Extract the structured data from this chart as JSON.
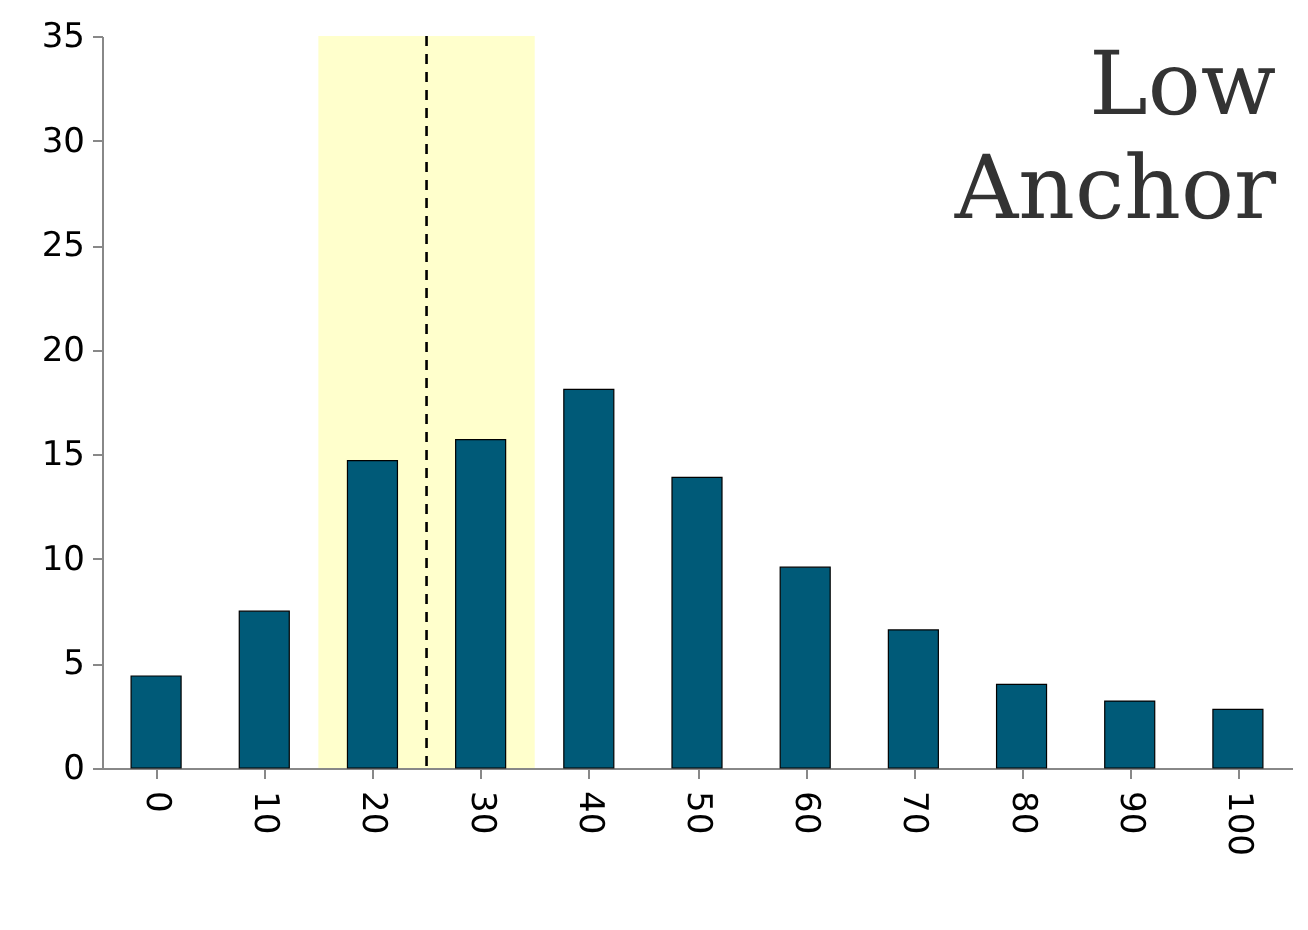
{
  "chart_data": {
    "type": "bar",
    "title": "Low Anchor",
    "x": [
      0,
      10,
      20,
      30,
      40,
      50,
      60,
      70,
      80,
      90,
      100
    ],
    "values": [
      4.4,
      7.5,
      14.7,
      15.7,
      18.1,
      13.9,
      9.6,
      6.6,
      4.0,
      3.2,
      2.8
    ],
    "color": "#005a78",
    "xlim": [
      -5,
      105
    ],
    "xticks": [
      0,
      10,
      20,
      30,
      40,
      50,
      60,
      70,
      80,
      90,
      100
    ],
    "ylim": [
      0,
      35
    ],
    "yticks": [
      0,
      5,
      10,
      15,
      20,
      25,
      30,
      35
    ],
    "ref_lines": [
      {
        "axis": "x",
        "value": 25,
        "line_style": "dashed",
        "color": "#000000"
      }
    ],
    "bands": [
      {
        "axis": "x",
        "from": 15,
        "to": 35,
        "color": "#ffffcc"
      }
    ],
    "grid": false
  }
}
